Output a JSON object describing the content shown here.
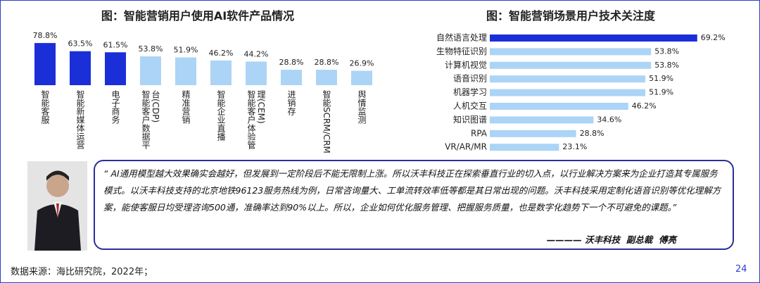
{
  "chart_data": [
    {
      "type": "bar",
      "title": "图：智能营销用户使用AI软件产品情况",
      "categories": [
        "智能客服",
        "智能新媒体运营",
        "电子商务",
        "智能客户数据平台(CDP)",
        "精准营销",
        "智能企业直播",
        "智能客户体验管理(CEM)",
        "进销存",
        "智能SCRM/CRM",
        "舆情监测"
      ],
      "values": [
        78.8,
        63.5,
        61.5,
        53.8,
        51.9,
        46.2,
        44.2,
        28.8,
        28.8,
        26.9
      ],
      "value_labels": [
        "78.8%",
        "63.5%",
        "61.5%",
        "53.8%",
        "51.9%",
        "46.2%",
        "44.2%",
        "28.8%",
        "28.8%",
        "26.9%"
      ],
      "colors": [
        "#1b2fd8",
        "#1b2fd8",
        "#1b2fd8",
        "#acd4f6",
        "#acd4f6",
        "#acd4f6",
        "#acd4f6",
        "#acd4f6",
        "#acd4f6",
        "#acd4f6"
      ]
    },
    {
      "type": "barh",
      "title": "图：智能营销场景用户技术关注度",
      "categories": [
        "自然语言处理",
        "生物特征识别",
        "计算机视觉",
        "语音识别",
        "机器学习",
        "人机交互",
        "知识图谱",
        "RPA",
        "VR/AR/MR"
      ],
      "values": [
        69.2,
        53.8,
        53.8,
        51.9,
        51.9,
        46.2,
        34.6,
        28.8,
        23.1
      ],
      "value_labels": [
        "69.2%",
        "53.8%",
        "53.8%",
        "51.9%",
        "51.9%",
        "46.2%",
        "34.6%",
        "28.8%",
        "23.1%"
      ],
      "colors": [
        "#1b2fd8",
        "#acd4f6",
        "#acd4f6",
        "#acd4f6",
        "#acd4f6",
        "#acd4f6",
        "#acd4f6",
        "#acd4f6",
        "#acd4f6"
      ]
    }
  ],
  "quote": {
    "text": "“ AI通用模型越大效果确实会越好，但发展到一定阶段后不能无限制上涨。所以沃丰科技正在探索垂直行业的切入点，以行业解决方案来为企业打造其专属服务模式。以沃丰科技支持的北京地铁96123服务热线为例，日常咨询量大、工单流转效率低等都是其日常出现的问题。沃丰科技采用定制化语音识别等优化理解方案，能使客服日均受理咨询500通，准确率达到90%以上。所以，企业如何优化服务管理、把握服务质量，也是数字化趋势下一个不可避免的课题。”",
    "attribution": "———— 沃丰科技  副总裁  傅亮"
  },
  "source": "数据来源：海比研究院，2022年；",
  "page_number": "24"
}
